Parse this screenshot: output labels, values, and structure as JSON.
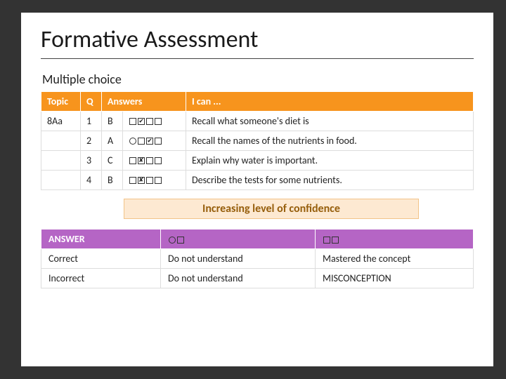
{
  "title": "Formative Assessment",
  "subtitle": "Multiple choice",
  "main_table": {
    "header_bg": "#f7941d",
    "header_fg": "#ffffff",
    "headers": {
      "topic": "Topic",
      "q": "Q",
      "answers": "Answers",
      "ican": "I can ..."
    },
    "topic": "8Aa",
    "rows": [
      {
        "q": "1",
        "ans": "B",
        "marks": "☐✔☐☐",
        "ican": "Recall what someone's diet is"
      },
      {
        "q": "2",
        "ans": "A",
        "marks": "☹☐✔☐",
        "ican": "Recall the names of the nutrients in food."
      },
      {
        "q": "3",
        "ans": "C",
        "marks": "☐✘☐☐",
        "ican": "Explain why water is important."
      },
      {
        "q": "4",
        "ans": "B",
        "marks": "☐✘☐☐",
        "ican": "Describe the tests for some nutrients."
      }
    ]
  },
  "confidence_label": "Increasing level of confidence",
  "confidence_style": {
    "bg": "#fde9d2",
    "fg": "#965e0c"
  },
  "legend": {
    "header_bg": "#b565c5",
    "header_fg": "#ffffff",
    "headers": {
      "answer": "ANSWER",
      "low": "☹☐",
      "high": "☐☐"
    },
    "rows": [
      {
        "answer": "Correct",
        "low": "Do not understand",
        "high": "Mastered the concept"
      },
      {
        "answer": "Incorrect",
        "low": "Do not understand",
        "high": "MISCONCEPTION"
      }
    ]
  }
}
